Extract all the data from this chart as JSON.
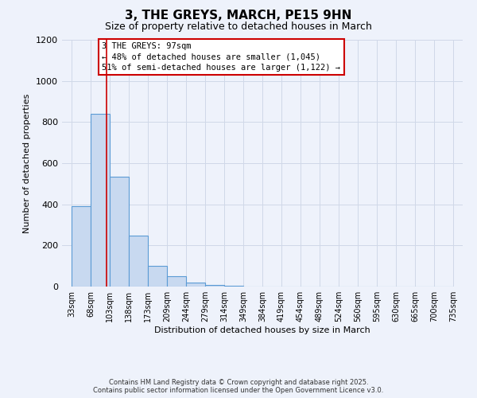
{
  "title": "3, THE GREYS, MARCH, PE15 9HN",
  "subtitle": "Size of property relative to detached houses in March",
  "bar_values": [
    390,
    840,
    535,
    248,
    100,
    52,
    18,
    8,
    2,
    0,
    0,
    0,
    0,
    0,
    0,
    0,
    0,
    0,
    0,
    0
  ],
  "categories": [
    "33sqm",
    "68sqm",
    "103sqm",
    "138sqm",
    "173sqm",
    "209sqm",
    "244sqm",
    "279sqm",
    "314sqm",
    "349sqm",
    "384sqm",
    "419sqm",
    "454sqm",
    "489sqm",
    "524sqm",
    "560sqm",
    "595sqm",
    "630sqm",
    "665sqm",
    "700sqm",
    "735sqm"
  ],
  "bar_color": "#c8d9f0",
  "bar_edge_color": "#5b9bd5",
  "bar_edge_width": 0.8,
  "grid_color": "#d0d8e8",
  "background_color": "#eef2fb",
  "ylabel": "Number of detached properties",
  "xlabel": "Distribution of detached houses by size in March",
  "ylim": [
    0,
    1200
  ],
  "yticks": [
    0,
    200,
    400,
    600,
    800,
    1000,
    1200
  ],
  "red_line_color": "#cc0000",
  "annotation_title": "3 THE GREYS: 97sqm",
  "annotation_line1": "← 48% of detached houses are smaller (1,045)",
  "annotation_line2": "51% of semi-detached houses are larger (1,122) →",
  "annotation_box_color": "#ffffff",
  "annotation_box_edge": "#cc0000",
  "footer_line1": "Contains HM Land Registry data © Crown copyright and database right 2025.",
  "footer_line2": "Contains public sector information licensed under the Open Government Licence v3.0.",
  "bin_starts": [
    33,
    68,
    103,
    138,
    173,
    209,
    244,
    279,
    314,
    349,
    384,
    419,
    454,
    489,
    524,
    560,
    595,
    630,
    665,
    700
  ],
  "bin_width": 35,
  "n_bins": 20,
  "red_line_x": 97,
  "title_fontsize": 11,
  "subtitle_fontsize": 9,
  "ylabel_fontsize": 8,
  "xlabel_fontsize": 8,
  "tick_fontsize": 7,
  "ytick_fontsize": 8,
  "footer_fontsize": 6,
  "annotation_fontsize": 7.5
}
